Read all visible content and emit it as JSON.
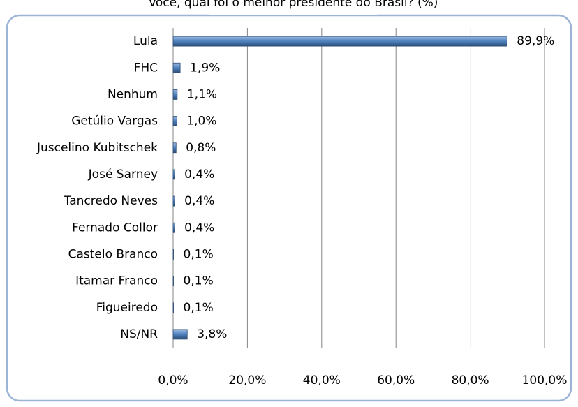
{
  "chart_data": {
    "type": "bar",
    "orientation": "horizontal",
    "title": "Você, qual foi o melhor presidente do Brasil? (%)",
    "categories": [
      "Lula",
      "FHC",
      "Nenhum",
      "Getúlio Vargas",
      "Juscelino Kubitschek",
      "José Sarney",
      "Tancredo Neves",
      "Fernado Collor",
      "Castelo Branco",
      "Itamar Franco",
      "Figueiredo",
      "NS/NR"
    ],
    "values": [
      89.9,
      1.9,
      1.1,
      1.0,
      0.8,
      0.4,
      0.4,
      0.4,
      0.1,
      0.1,
      0.1,
      3.8
    ],
    "value_labels": [
      "89,9%",
      "1,9%",
      "1,1%",
      "1,0%",
      "0,8%",
      "0,4%",
      "0,4%",
      "0,4%",
      "0,1%",
      "0,1%",
      "0,1%",
      "3,8%"
    ],
    "color": "#4f81bd",
    "xlim": [
      0,
      100
    ],
    "xticks": [
      {
        "value": 0,
        "label": "0,0%"
      },
      {
        "value": 20,
        "label": "20,0%"
      },
      {
        "value": 40,
        "label": "40,0%"
      },
      {
        "value": 60,
        "label": "60,0%"
      },
      {
        "value": 80,
        "label": "80,0%"
      },
      {
        "value": 100,
        "label": "100,0%"
      }
    ],
    "grid": true
  }
}
